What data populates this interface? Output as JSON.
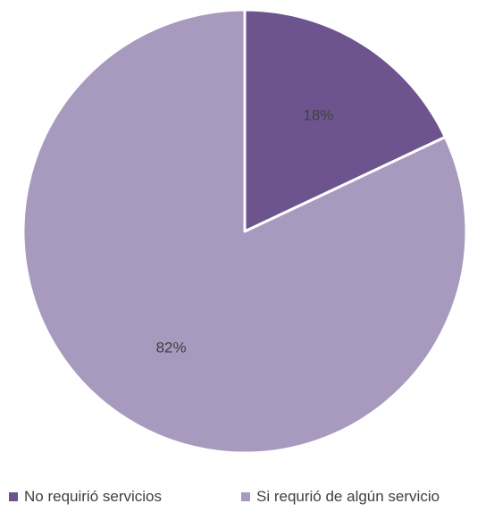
{
  "chart_data": {
    "type": "pie",
    "categories": [
      "No requirió servicios",
      "Si requrió de algún servicio"
    ],
    "values": [
      18,
      82
    ],
    "labels": [
      "18%",
      "82%"
    ],
    "colors": [
      "#6E548E",
      "#A899BF"
    ],
    "start_angle_deg": 0,
    "direction": "clockwise",
    "legend_position": "bottom",
    "title": ""
  },
  "legend": {
    "items": [
      {
        "label": "No requirió servicios",
        "color": "#6E548E"
      },
      {
        "label": "Si requrió de algún servicio",
        "color": "#A899BF"
      }
    ]
  }
}
